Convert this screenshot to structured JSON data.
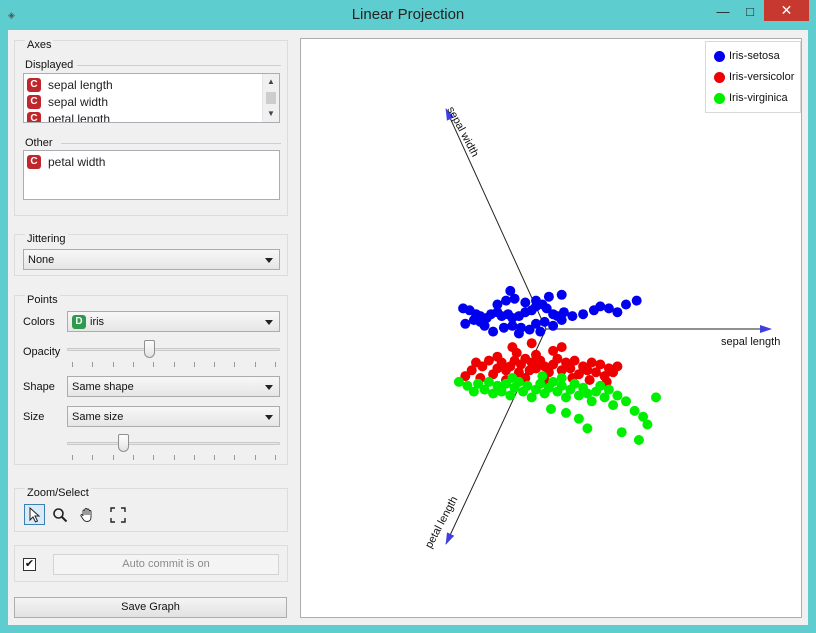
{
  "window": {
    "title": "Linear Projection"
  },
  "axes_group": {
    "title": "Axes",
    "displayed_label": "Displayed",
    "displayed_items": [
      {
        "badge": "C",
        "label": "sepal length"
      },
      {
        "badge": "C",
        "label": "sepal width"
      },
      {
        "badge": "C",
        "label": "petal length"
      }
    ],
    "other_label": "Other",
    "other_items": [
      {
        "badge": "C",
        "label": "petal width"
      }
    ]
  },
  "jittering_group": {
    "title": "Jittering",
    "value": "None"
  },
  "points_group": {
    "title": "Points",
    "colors_label": "Colors",
    "colors_badge": "D",
    "colors_value": "iris",
    "opacity_label": "Opacity",
    "opacity_level": 0.38,
    "shape_label": "Shape",
    "shape_value": "Same shape",
    "size_label": "Size",
    "size_value": "Same size",
    "size_level": 0.25
  },
  "zoom_group": {
    "title": "Zoom/Select",
    "tools": [
      "select-tool",
      "zoom-tool",
      "pan-tool",
      "reset-zoom-tool"
    ]
  },
  "commit": {
    "checked": true,
    "label": "Auto commit is on"
  },
  "save_graph_label": "Save Graph",
  "legend": [
    {
      "label": "Iris-setosa",
      "color": "#0000ee"
    },
    {
      "label": "Iris-versicolor",
      "color": "#ee0000"
    },
    {
      "label": "Iris-virginica",
      "color": "#00ee00"
    }
  ],
  "chart_data": {
    "type": "scatter",
    "axis_labels": [
      "sepal length",
      "sepal width",
      "petal length"
    ],
    "series": [
      {
        "name": "Iris-setosa",
        "color": "#0000ee",
        "points": [
          [
            0.04,
            0.48
          ],
          [
            0.07,
            0.47
          ],
          [
            0.1,
            0.45
          ],
          [
            0.12,
            0.44
          ],
          [
            0.05,
            0.4
          ],
          [
            0.09,
            0.42
          ],
          [
            0.12,
            0.41
          ],
          [
            0.15,
            0.43
          ],
          [
            0.17,
            0.45
          ],
          [
            0.2,
            0.46
          ],
          [
            0.22,
            0.44
          ],
          [
            0.25,
            0.45
          ],
          [
            0.27,
            0.43
          ],
          [
            0.3,
            0.44
          ],
          [
            0.33,
            0.46
          ],
          [
            0.36,
            0.47
          ],
          [
            0.38,
            0.49
          ],
          [
            0.41,
            0.5
          ],
          [
            0.43,
            0.48
          ],
          [
            0.46,
            0.45
          ],
          [
            0.48,
            0.44
          ],
          [
            0.51,
            0.46
          ],
          [
            0.55,
            0.44
          ],
          [
            0.6,
            0.45
          ],
          [
            0.65,
            0.47
          ],
          [
            0.68,
            0.49
          ],
          [
            0.72,
            0.48
          ],
          [
            0.76,
            0.46
          ],
          [
            0.8,
            0.5
          ],
          [
            0.85,
            0.52
          ],
          [
            0.14,
            0.39
          ],
          [
            0.18,
            0.36
          ],
          [
            0.23,
            0.38
          ],
          [
            0.27,
            0.39
          ],
          [
            0.31,
            0.38
          ],
          [
            0.35,
            0.37
          ],
          [
            0.38,
            0.4
          ],
          [
            0.42,
            0.41
          ],
          [
            0.46,
            0.39
          ],
          [
            0.5,
            0.42
          ],
          [
            0.2,
            0.5
          ],
          [
            0.24,
            0.52
          ],
          [
            0.28,
            0.53
          ],
          [
            0.33,
            0.51
          ],
          [
            0.38,
            0.52
          ],
          [
            0.44,
            0.54
          ],
          [
            0.5,
            0.55
          ],
          [
            0.3,
            0.35
          ],
          [
            0.4,
            0.36
          ],
          [
            0.26,
            0.57
          ]
        ]
      },
      {
        "name": "Iris-versicolor",
        "color": "#ee0000",
        "points": [
          [
            0.05,
            0.13
          ],
          [
            0.08,
            0.16
          ],
          [
            0.1,
            0.2
          ],
          [
            0.13,
            0.18
          ],
          [
            0.16,
            0.21
          ],
          [
            0.18,
            0.14
          ],
          [
            0.2,
            0.17
          ],
          [
            0.22,
            0.2
          ],
          [
            0.24,
            0.16
          ],
          [
            0.26,
            0.18
          ],
          [
            0.28,
            0.21
          ],
          [
            0.3,
            0.15
          ],
          [
            0.31,
            0.19
          ],
          [
            0.33,
            0.22
          ],
          [
            0.35,
            0.16
          ],
          [
            0.36,
            0.2
          ],
          [
            0.38,
            0.17
          ],
          [
            0.4,
            0.21
          ],
          [
            0.42,
            0.18
          ],
          [
            0.44,
            0.15
          ],
          [
            0.46,
            0.19
          ],
          [
            0.48,
            0.22
          ],
          [
            0.5,
            0.16
          ],
          [
            0.52,
            0.2
          ],
          [
            0.54,
            0.17
          ],
          [
            0.56,
            0.21
          ],
          [
            0.58,
            0.14
          ],
          [
            0.6,
            0.18
          ],
          [
            0.62,
            0.16
          ],
          [
            0.64,
            0.2
          ],
          [
            0.66,
            0.15
          ],
          [
            0.68,
            0.19
          ],
          [
            0.7,
            0.13
          ],
          [
            0.72,
            0.17
          ],
          [
            0.74,
            0.15
          ],
          [
            0.76,
            0.18
          ],
          [
            0.2,
            0.23
          ],
          [
            0.29,
            0.25
          ],
          [
            0.38,
            0.24
          ],
          [
            0.46,
            0.26
          ],
          [
            0.12,
            0.12
          ],
          [
            0.24,
            0.11
          ],
          [
            0.33,
            0.12
          ],
          [
            0.42,
            0.11
          ],
          [
            0.55,
            0.12
          ],
          [
            0.63,
            0.11
          ],
          [
            0.71,
            0.1
          ],
          [
            0.27,
            0.28
          ],
          [
            0.36,
            0.3
          ],
          [
            0.5,
            0.28
          ]
        ]
      },
      {
        "name": "Iris-virginica",
        "color": "#00ee00",
        "points": [
          [
            0.02,
            0.1
          ],
          [
            0.06,
            0.08
          ],
          [
            0.09,
            0.05
          ],
          [
            0.11,
            0.09
          ],
          [
            0.14,
            0.06
          ],
          [
            0.16,
            0.1
          ],
          [
            0.18,
            0.04
          ],
          [
            0.2,
            0.08
          ],
          [
            0.22,
            0.05
          ],
          [
            0.24,
            0.09
          ],
          [
            0.26,
            0.03
          ],
          [
            0.28,
            0.07
          ],
          [
            0.3,
            0.1
          ],
          [
            0.32,
            0.05
          ],
          [
            0.34,
            0.08
          ],
          [
            0.36,
            0.02
          ],
          [
            0.38,
            0.06
          ],
          [
            0.4,
            0.09
          ],
          [
            0.42,
            0.04
          ],
          [
            0.44,
            0.07
          ],
          [
            0.46,
            0.1
          ],
          [
            0.48,
            0.05
          ],
          [
            0.5,
            0.08
          ],
          [
            0.52,
            0.02
          ],
          [
            0.54,
            0.06
          ],
          [
            0.56,
            0.09
          ],
          [
            0.58,
            0.03
          ],
          [
            0.6,
            0.07
          ],
          [
            0.62,
            0.04
          ],
          [
            0.64,
            0.0
          ],
          [
            0.66,
            0.05
          ],
          [
            0.68,
            0.08
          ],
          [
            0.7,
            0.02
          ],
          [
            0.72,
            0.06
          ],
          [
            0.74,
            -0.02
          ],
          [
            0.76,
            0.03
          ],
          [
            0.8,
            0.0
          ],
          [
            0.84,
            -0.05
          ],
          [
            0.88,
            -0.08
          ],
          [
            0.9,
            -0.12
          ],
          [
            0.45,
            -0.04
          ],
          [
            0.52,
            -0.06
          ],
          [
            0.58,
            -0.09
          ],
          [
            0.62,
            -0.14
          ],
          [
            0.5,
            0.12
          ],
          [
            0.41,
            0.13
          ],
          [
            0.27,
            0.12
          ],
          [
            0.78,
            -0.16
          ],
          [
            0.86,
            -0.2
          ],
          [
            0.94,
            0.02
          ]
        ]
      }
    ]
  }
}
